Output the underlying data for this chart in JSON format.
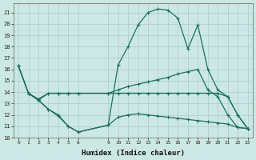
{
  "xlabel": "Humidex (Indice chaleur)",
  "background_color": "#cce8e4",
  "grid_color": "#aacccc",
  "line_color": "#1a7060",
  "xlim": [
    -0.5,
    23.5
  ],
  "ylim": [
    10,
    21.8
  ],
  "yticks": [
    10,
    11,
    12,
    13,
    14,
    15,
    16,
    17,
    18,
    19,
    20,
    21
  ],
  "xticks": [
    0,
    1,
    2,
    3,
    4,
    5,
    6,
    9,
    10,
    11,
    12,
    13,
    14,
    15,
    16,
    17,
    18,
    19,
    20,
    21,
    22,
    23
  ],
  "line1_x": [
    0,
    1,
    2,
    3,
    4,
    5,
    6,
    9,
    10,
    11,
    12,
    13,
    14,
    15,
    16,
    17,
    18,
    19,
    20,
    21,
    22,
    23
  ],
  "line1_y": [
    16.3,
    13.9,
    13.3,
    12.5,
    11.9,
    11.0,
    10.5,
    11.1,
    16.4,
    18.0,
    19.9,
    21.0,
    21.3,
    21.2,
    20.5,
    17.8,
    19.9,
    16.0,
    14.2,
    13.6,
    12.0,
    10.8
  ],
  "line2_x": [
    0,
    1,
    2,
    3,
    4,
    5,
    6,
    9,
    10,
    11,
    12,
    13,
    14,
    15,
    16,
    17,
    18,
    19,
    20,
    21,
    22,
    23
  ],
  "line2_y": [
    16.3,
    13.9,
    13.4,
    13.9,
    13.9,
    13.9,
    13.9,
    13.9,
    14.2,
    14.5,
    14.7,
    14.9,
    15.1,
    15.3,
    15.6,
    15.8,
    16.0,
    14.2,
    13.6,
    12.0,
    10.9,
    10.8
  ],
  "line3_x": [
    1,
    2,
    3,
    4,
    5,
    6,
    9,
    10,
    11,
    12,
    13,
    14,
    15,
    16,
    17,
    18,
    19,
    20,
    21,
    22,
    23
  ],
  "line3_y": [
    13.9,
    13.3,
    13.9,
    13.9,
    13.9,
    13.9,
    13.9,
    13.9,
    13.9,
    13.9,
    13.9,
    13.9,
    13.9,
    13.9,
    13.9,
    13.9,
    13.9,
    13.9,
    13.6,
    12.0,
    10.8
  ],
  "line4_x": [
    0,
    1,
    2,
    3,
    4,
    5,
    6,
    9,
    10,
    11,
    12,
    13,
    14,
    15,
    16,
    17,
    18,
    19,
    20,
    21,
    22,
    23
  ],
  "line4_y": [
    16.3,
    13.9,
    13.3,
    12.5,
    12.0,
    11.0,
    10.5,
    11.1,
    11.8,
    12.0,
    12.1,
    12.0,
    11.9,
    11.8,
    11.7,
    11.6,
    11.5,
    11.4,
    11.3,
    11.2,
    10.9,
    10.8
  ]
}
